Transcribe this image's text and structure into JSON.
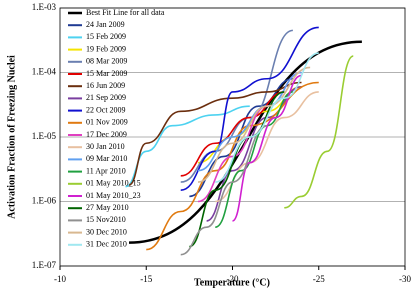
{
  "chart_data": {
    "type": "line",
    "x_label": "Temperature (°C)",
    "y_label": "Activation Fraction of Freezing Nuclei",
    "xlim": [
      -10,
      -30
    ],
    "xticks": [
      -10,
      -15,
      -20,
      -25,
      -30
    ],
    "ylim": [
      1e-07,
      0.001
    ],
    "log_y": true,
    "grid": true,
    "legend": "top-left",
    "yticks": [
      {
        "value": 1e-07,
        "label": "1.E-07"
      },
      {
        "value": 1e-06,
        "label": "1.E-06"
      },
      {
        "value": 1e-05,
        "label": "1.E-05"
      },
      {
        "value": 0.0001,
        "label": "1.E-04"
      },
      {
        "value": 0.001,
        "label": "1.E-03"
      }
    ],
    "series": [
      {
        "name": "Best Fit Line for all data",
        "color": "#000000",
        "x": [
          -14,
          -27.5
        ],
        "values": [
          2.3e-07,
          0.0003
        ]
      },
      {
        "name": "24 Jan 2009",
        "color": "#1f3a93",
        "x": [
          -17.5,
          -19.5,
          -21.5,
          -23.5
        ],
        "values": [
          1.2e-06,
          5e-06,
          3e-05,
          8e-05
        ]
      },
      {
        "name": "15 Feb 2009",
        "color": "#4dd2f0",
        "x": [
          -13.8,
          -15,
          -16.5,
          -19,
          -21
        ],
        "values": [
          1.7e-06,
          6e-06,
          1.5e-05,
          2.2e-05,
          3e-05
        ]
      },
      {
        "name": "19 Feb 2009",
        "color": "#f5e400",
        "x": [
          -18,
          -20,
          -22,
          -24
        ],
        "values": [
          4e-06,
          1e-05,
          2.5e-05,
          6e-05
        ]
      },
      {
        "name": "08 Mar 2009",
        "color": "#6a7fb0",
        "x": [
          -17,
          -19,
          -21,
          -23.5
        ],
        "values": [
          2e-06,
          6e-06,
          2e-05,
          0.00045
        ]
      },
      {
        "name": "15 Mar 2009",
        "color": "#e00000",
        "x": [
          -17,
          -19,
          -21,
          -23
        ],
        "values": [
          2.5e-06,
          8e-06,
          2e-05,
          5e-05
        ]
      },
      {
        "name": "16 Jun 2009",
        "color": "#6b2e0e",
        "x": [
          -14,
          -15,
          -17,
          -20,
          -22,
          -24
        ],
        "values": [
          1.8e-06,
          8e-06,
          2.5e-05,
          4e-05,
          5e-05,
          7e-05
        ]
      },
      {
        "name": "21 Sep 2009",
        "color": "#7a3fa0",
        "x": [
          -18.5,
          -20,
          -22,
          -24
        ],
        "values": [
          5e-07,
          3e-06,
          2e-05,
          6e-05
        ]
      },
      {
        "name": "22 Oct 2009",
        "color": "#1010d0",
        "x": [
          -17,
          -19,
          -20,
          -22,
          -25
        ],
        "values": [
          1.5e-06,
          6e-06,
          5e-05,
          8e-05,
          0.0005
        ]
      },
      {
        "name": "01 Nov 2009",
        "color": "#e07a10",
        "x": [
          -15,
          -17,
          -19,
          -21,
          -25
        ],
        "values": [
          1.8e-07,
          7e-07,
          3e-06,
          1.5e-05,
          7e-05
        ]
      },
      {
        "name": "17 Dec 2009",
        "color": "#e040c0",
        "x": [
          -18,
          -20,
          -22,
          -24
        ],
        "values": [
          1e-06,
          5e-06,
          3e-05,
          0.0001
        ]
      },
      {
        "name": "30 Jan 2010",
        "color": "#e8c0a0",
        "x": [
          -19,
          -21,
          -23,
          -25
        ],
        "values": [
          1e-06,
          4e-06,
          2e-05,
          5e-05
        ]
      },
      {
        "name": "09 Mar 2010",
        "color": "#60a0f0",
        "x": [
          -18,
          -20,
          -22,
          -24
        ],
        "values": [
          3e-06,
          1e-05,
          3e-05,
          0.0001
        ]
      },
      {
        "name": "11 Apr 2010",
        "color": "#20a040",
        "x": [
          -19,
          -20.5,
          -22,
          -23.5
        ],
        "values": [
          4e-07,
          3e-06,
          1.5e-05,
          5e-05
        ]
      },
      {
        "name": "01 May 2010_15",
        "color": "#9acd32",
        "x": [
          -23,
          -24,
          -25.5,
          -27
        ],
        "values": [
          8e-07,
          1.2e-06,
          6e-06,
          0.00018
        ]
      },
      {
        "name": "01 May 2010_23",
        "color": "#d020d0",
        "x": [
          -20,
          -21,
          -22.5,
          -24
        ],
        "values": [
          5e-07,
          4e-06,
          2e-05,
          9e-05
        ]
      },
      {
        "name": "27 May 2010",
        "color": "#006400",
        "x": [
          -17.5,
          -19,
          -21,
          -23
        ],
        "values": [
          2e-07,
          1.5e-06,
          1e-05,
          5e-05
        ]
      },
      {
        "name": "15 Nov2010",
        "color": "#909090",
        "x": [
          -17,
          -18.5,
          -20,
          -22
        ],
        "values": [
          1.5e-07,
          4e-07,
          2e-06,
          1.5e-05
        ]
      },
      {
        "name": "30 Dec 2010",
        "color": "#d8b890",
        "x": [
          -18,
          -20,
          -22,
          -24.5
        ],
        "values": [
          2e-06,
          8e-06,
          3e-05,
          0.00012
        ]
      },
      {
        "name": "31 Dec 2010",
        "color": "#a0e8f0",
        "x": [
          -19,
          -21,
          -23,
          -25
        ],
        "values": [
          2e-06,
          1e-05,
          4e-05,
          0.0002
        ]
      }
    ]
  }
}
